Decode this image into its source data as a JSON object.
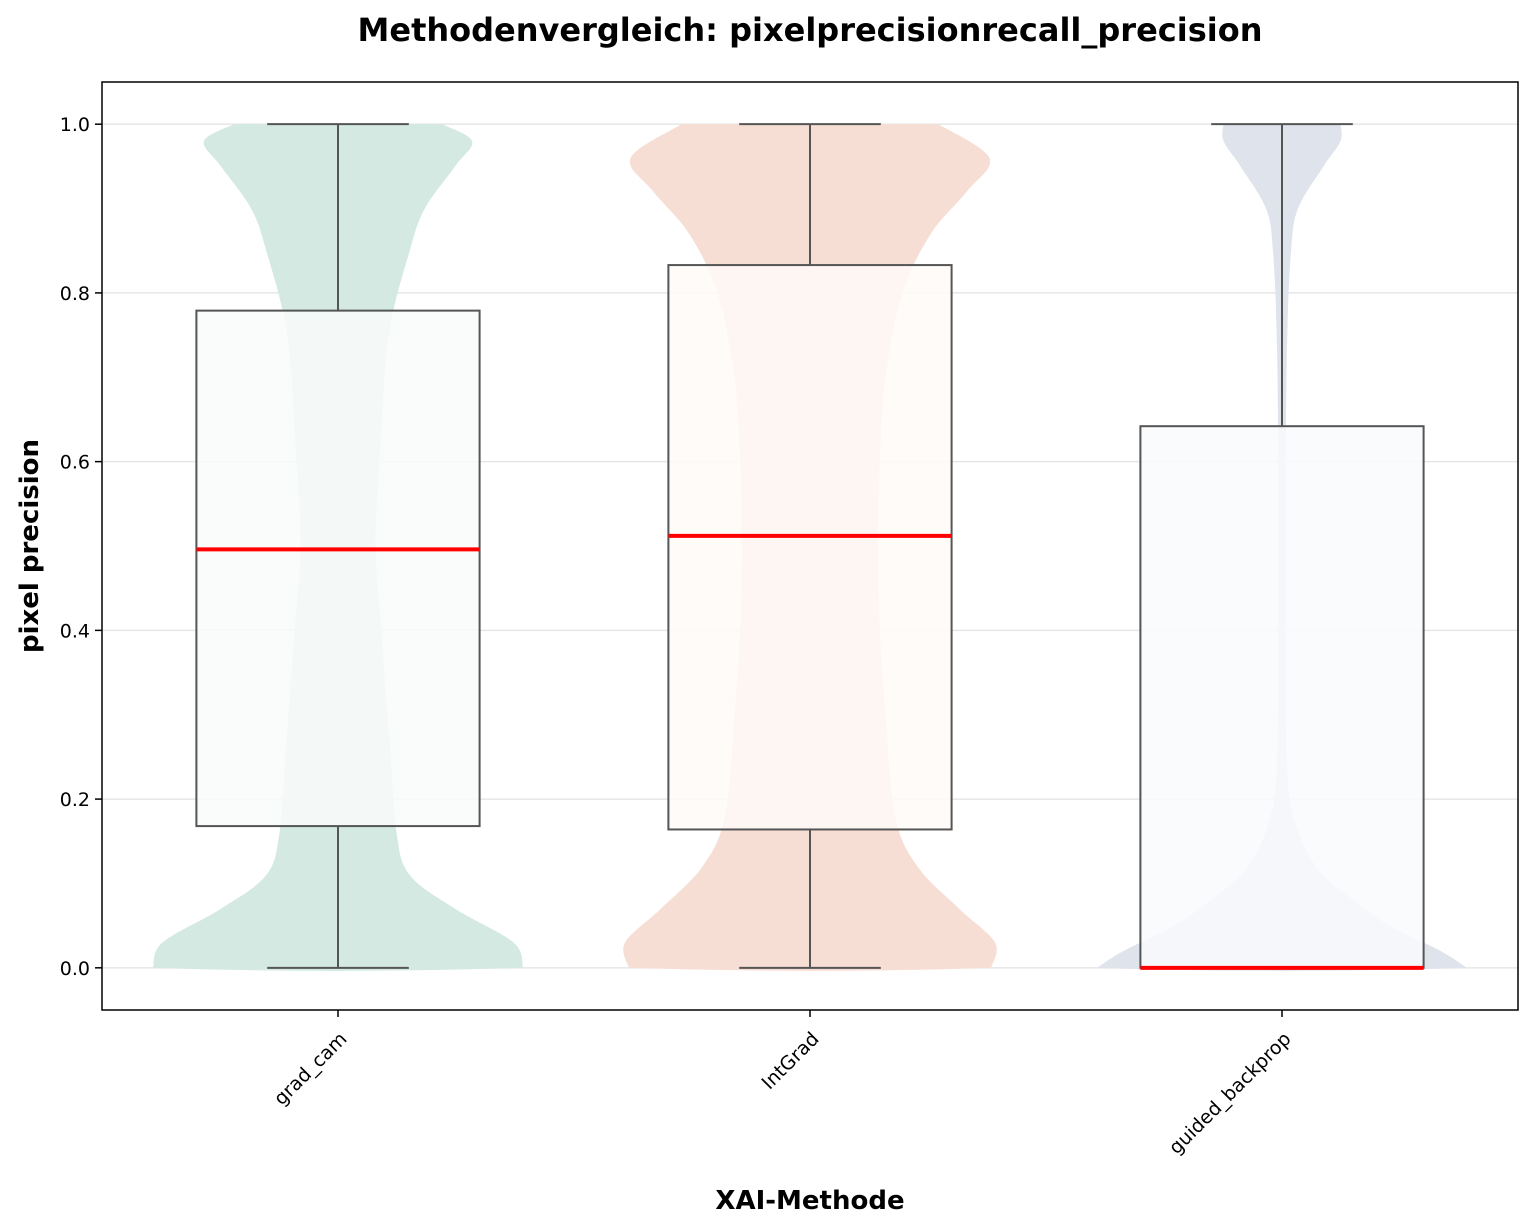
{
  "chart_data": {
    "type": "violin+box",
    "title": "Methodenvergleich: pixelprecisionrecall_precision",
    "xlabel": "XAI-Methode",
    "ylabel": "pixel precision",
    "ylim": [
      -0.05,
      1.05
    ],
    "yticks": [
      "0.0",
      "0.2",
      "0.4",
      "0.6",
      "0.8",
      "1.0"
    ],
    "ytick_values": [
      0.0,
      0.2,
      0.4,
      0.6,
      0.8,
      1.0
    ],
    "grid": "horizontal",
    "categories": [
      "grad_cam",
      "IntGrad",
      "guided_backprop"
    ],
    "colors": {
      "violins": [
        "#d4e9e2",
        "#f7ded5",
        "#dfe3eb"
      ],
      "box_fill": [
        "#f9fbfa",
        "#fffaf8",
        "#f9fafd"
      ],
      "median": "#ff0000",
      "box_edge": "#555555",
      "grid": "#e6e6e6"
    },
    "series": [
      {
        "category": "grad_cam",
        "box": {
          "min": 0.0,
          "q1": 0.168,
          "median": 0.496,
          "q3": 0.779,
          "max": 1.0
        },
        "density": [
          [
            0.0,
            0.98
          ],
          [
            0.03,
            0.93
          ],
          [
            0.07,
            0.62
          ],
          [
            0.11,
            0.38
          ],
          [
            0.16,
            0.31
          ],
          [
            0.25,
            0.28
          ],
          [
            0.4,
            0.23
          ],
          [
            0.5,
            0.2
          ],
          [
            0.6,
            0.22
          ],
          [
            0.75,
            0.27
          ],
          [
            0.85,
            0.38
          ],
          [
            0.9,
            0.46
          ],
          [
            0.95,
            0.62
          ],
          [
            0.98,
            0.71
          ],
          [
            1.0,
            0.55
          ]
        ]
      },
      {
        "category": "IntGrad",
        "box": {
          "min": 0.0,
          "q1": 0.164,
          "median": 0.512,
          "q3": 0.833,
          "max": 1.0
        },
        "density": [
          [
            0.0,
            0.96
          ],
          [
            0.03,
            0.98
          ],
          [
            0.07,
            0.79
          ],
          [
            0.12,
            0.57
          ],
          [
            0.18,
            0.45
          ],
          [
            0.3,
            0.4
          ],
          [
            0.4,
            0.37
          ],
          [
            0.5,
            0.36
          ],
          [
            0.6,
            0.37
          ],
          [
            0.7,
            0.4
          ],
          [
            0.8,
            0.49
          ],
          [
            0.87,
            0.64
          ],
          [
            0.92,
            0.83
          ],
          [
            0.96,
            0.95
          ],
          [
            1.0,
            0.68
          ]
        ]
      },
      {
        "category": "guided_backprop",
        "box": {
          "min": 0.0,
          "q1": 0.0,
          "median": 0.0,
          "q3": 0.642,
          "max": 1.0
        },
        "density": [
          [
            0.0,
            0.98
          ],
          [
            0.02,
            0.84
          ],
          [
            0.05,
            0.57
          ],
          [
            0.08,
            0.38
          ],
          [
            0.12,
            0.18
          ],
          [
            0.18,
            0.06
          ],
          [
            0.25,
            0.025
          ],
          [
            0.4,
            0.02
          ],
          [
            0.6,
            0.02
          ],
          [
            0.75,
            0.028
          ],
          [
            0.85,
            0.048
          ],
          [
            0.9,
            0.085
          ],
          [
            0.95,
            0.22
          ],
          [
            0.98,
            0.31
          ],
          [
            1.0,
            0.31
          ]
        ]
      }
    ]
  }
}
